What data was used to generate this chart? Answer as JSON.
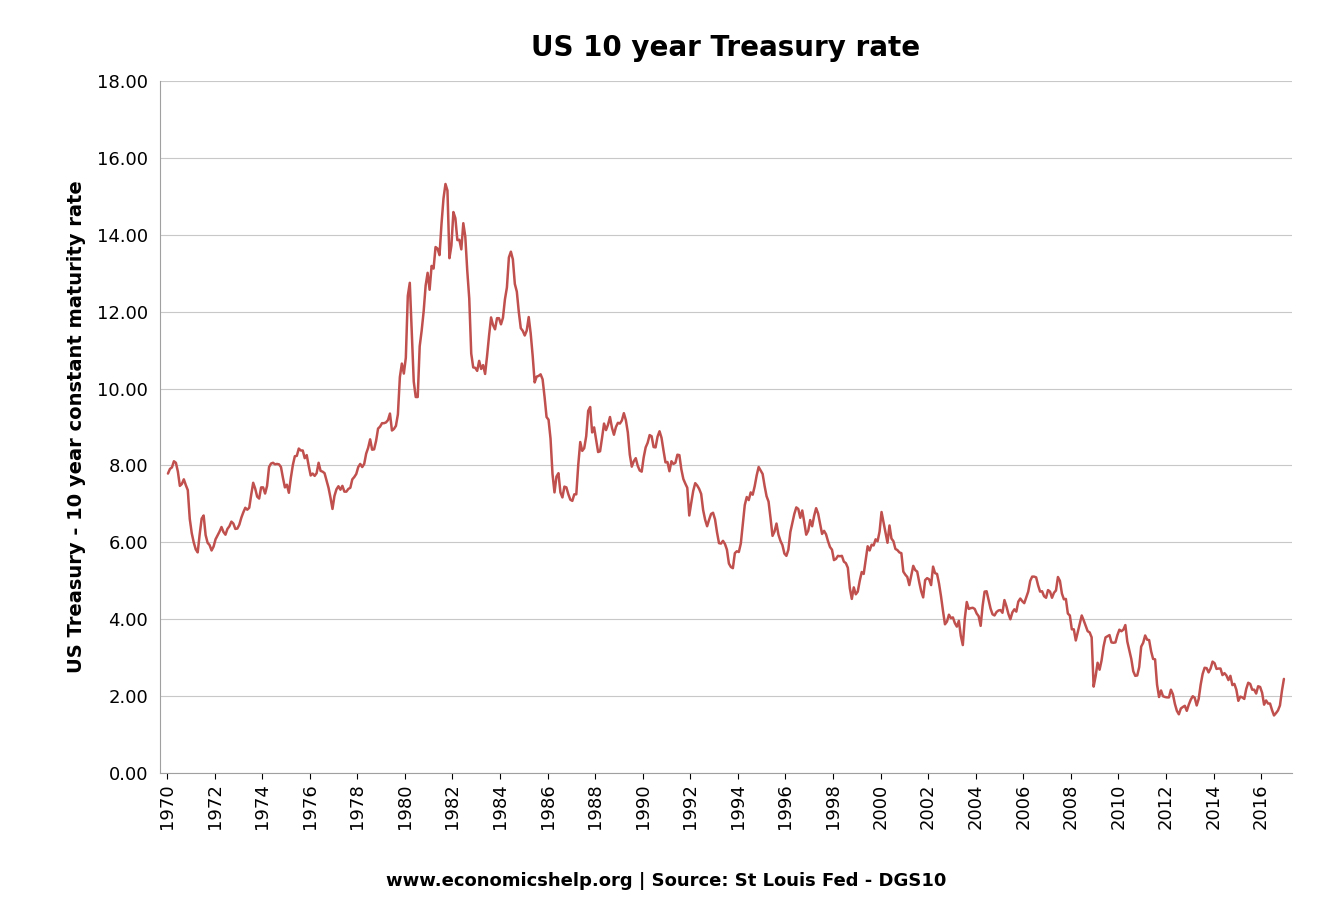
{
  "title": "US 10 year Treasury rate",
  "ylabel": "US Treasury - 10 year constant maturity rate",
  "source_text": "www.economicshelp.org | Source: St Louis Fed - DGS10",
  "ylim": [
    0.0,
    18.0
  ],
  "yticks": [
    0.0,
    2.0,
    4.0,
    6.0,
    8.0,
    10.0,
    12.0,
    14.0,
    16.0,
    18.0
  ],
  "line_color": "#C0504D",
  "background_color": "#FFFFFF",
  "grid_color": "#C8C8C8",
  "title_fontsize": 20,
  "label_fontsize": 14,
  "tick_fontsize": 13,
  "source_fontsize": 13,
  "xtick_years": [
    1970,
    1972,
    1974,
    1976,
    1978,
    1980,
    1982,
    1984,
    1986,
    1988,
    1990,
    1992,
    1994,
    1996,
    1998,
    2000,
    2002,
    2004,
    2006,
    2008,
    2010,
    2012,
    2014,
    2016
  ],
  "data": {
    "1970-01": 7.79,
    "1970-02": 7.91,
    "1970-03": 7.95,
    "1970-04": 8.11,
    "1970-05": 8.07,
    "1970-06": 7.84,
    "1970-07": 7.47,
    "1970-08": 7.52,
    "1970-09": 7.64,
    "1970-10": 7.49,
    "1970-11": 7.36,
    "1970-12": 6.61,
    "1971-01": 6.24,
    "1971-02": 6.0,
    "1971-03": 5.82,
    "1971-04": 5.74,
    "1971-05": 6.21,
    "1971-06": 6.62,
    "1971-07": 6.7,
    "1971-08": 6.19,
    "1971-09": 5.99,
    "1971-10": 5.93,
    "1971-11": 5.79,
    "1971-12": 5.89,
    "1972-01": 6.08,
    "1972-02": 6.18,
    "1972-03": 6.28,
    "1972-04": 6.4,
    "1972-05": 6.27,
    "1972-06": 6.2,
    "1972-07": 6.35,
    "1972-08": 6.42,
    "1972-09": 6.54,
    "1972-10": 6.49,
    "1972-11": 6.35,
    "1972-12": 6.36,
    "1973-01": 6.46,
    "1973-02": 6.64,
    "1973-03": 6.78,
    "1973-04": 6.9,
    "1973-05": 6.85,
    "1973-06": 6.9,
    "1973-07": 7.24,
    "1973-08": 7.55,
    "1973-09": 7.4,
    "1973-10": 7.19,
    "1973-11": 7.14,
    "1973-12": 7.43,
    "1974-01": 7.43,
    "1974-02": 7.27,
    "1974-03": 7.47,
    "1974-04": 7.96,
    "1974-05": 8.05,
    "1974-06": 8.07,
    "1974-07": 8.03,
    "1974-08": 8.04,
    "1974-09": 8.03,
    "1974-10": 7.96,
    "1974-11": 7.68,
    "1974-12": 7.43,
    "1975-01": 7.5,
    "1975-02": 7.29,
    "1975-03": 7.68,
    "1975-04": 8.01,
    "1975-05": 8.24,
    "1975-06": 8.25,
    "1975-07": 8.44,
    "1975-08": 8.39,
    "1975-09": 8.39,
    "1975-10": 8.19,
    "1975-11": 8.27,
    "1975-12": 7.99,
    "1976-01": 7.74,
    "1976-02": 7.79,
    "1976-03": 7.73,
    "1976-04": 7.8,
    "1976-05": 8.07,
    "1976-06": 7.86,
    "1976-07": 7.84,
    "1976-08": 7.8,
    "1976-09": 7.61,
    "1976-10": 7.42,
    "1976-11": 7.16,
    "1976-12": 6.87,
    "1977-01": 7.21,
    "1977-02": 7.38,
    "1977-03": 7.46,
    "1977-04": 7.37,
    "1977-05": 7.47,
    "1977-06": 7.32,
    "1977-07": 7.32,
    "1977-08": 7.39,
    "1977-09": 7.42,
    "1977-10": 7.64,
    "1977-11": 7.7,
    "1977-12": 7.78,
    "1978-01": 7.96,
    "1978-02": 8.04,
    "1978-03": 7.96,
    "1978-04": 8.04,
    "1978-05": 8.31,
    "1978-06": 8.46,
    "1978-07": 8.68,
    "1978-08": 8.41,
    "1978-09": 8.42,
    "1978-10": 8.64,
    "1978-11": 8.96,
    "1978-12": 9.01,
    "1979-01": 9.1,
    "1979-02": 9.1,
    "1979-03": 9.12,
    "1979-04": 9.18,
    "1979-05": 9.35,
    "1979-06": 8.91,
    "1979-07": 8.95,
    "1979-08": 9.03,
    "1979-09": 9.33,
    "1979-10": 10.3,
    "1979-11": 10.65,
    "1979-12": 10.39,
    "1980-01": 10.8,
    "1980-02": 12.41,
    "1980-03": 12.75,
    "1980-04": 11.47,
    "1980-05": 10.18,
    "1980-06": 9.78,
    "1980-07": 9.78,
    "1980-08": 11.1,
    "1980-09": 11.51,
    "1980-10": 12.01,
    "1980-11": 12.68,
    "1980-12": 13.01,
    "1981-01": 12.57,
    "1981-02": 13.19,
    "1981-03": 13.12,
    "1981-04": 13.68,
    "1981-05": 13.64,
    "1981-06": 13.47,
    "1981-07": 14.28,
    "1981-08": 14.94,
    "1981-09": 15.32,
    "1981-10": 15.15,
    "1981-11": 13.39,
    "1981-12": 13.72,
    "1982-01": 14.59,
    "1982-02": 14.43,
    "1982-03": 13.86,
    "1982-04": 13.87,
    "1982-05": 13.62,
    "1982-06": 14.3,
    "1982-07": 13.95,
    "1982-08": 13.06,
    "1982-09": 12.34,
    "1982-10": 10.91,
    "1982-11": 10.55,
    "1982-12": 10.54,
    "1983-01": 10.46,
    "1983-02": 10.72,
    "1983-03": 10.51,
    "1983-04": 10.61,
    "1983-05": 10.38,
    "1983-06": 10.85,
    "1983-07": 11.38,
    "1983-08": 11.85,
    "1983-09": 11.65,
    "1983-10": 11.54,
    "1983-11": 11.83,
    "1983-12": 11.83,
    "1984-01": 11.67,
    "1984-02": 11.84,
    "1984-03": 12.32,
    "1984-04": 12.63,
    "1984-05": 13.41,
    "1984-06": 13.56,
    "1984-07": 13.36,
    "1984-08": 12.72,
    "1984-09": 12.52,
    "1984-10": 11.99,
    "1984-11": 11.57,
    "1984-12": 11.5,
    "1985-01": 11.38,
    "1985-02": 11.51,
    "1985-03": 11.86,
    "1985-04": 11.43,
    "1985-05": 10.85,
    "1985-06": 10.16,
    "1985-07": 10.31,
    "1985-08": 10.33,
    "1985-09": 10.37,
    "1985-10": 10.24,
    "1985-11": 9.78,
    "1985-12": 9.26,
    "1986-01": 9.19,
    "1986-02": 8.7,
    "1986-03": 7.78,
    "1986-04": 7.3,
    "1986-05": 7.71,
    "1986-06": 7.8,
    "1986-07": 7.3,
    "1986-08": 7.17,
    "1986-09": 7.45,
    "1986-10": 7.43,
    "1986-11": 7.25,
    "1986-12": 7.11,
    "1987-01": 7.08,
    "1987-02": 7.25,
    "1987-03": 7.25,
    "1987-04": 8.02,
    "1987-05": 8.61,
    "1987-06": 8.38,
    "1987-07": 8.45,
    "1987-08": 8.76,
    "1987-09": 9.42,
    "1987-10": 9.52,
    "1987-11": 8.86,
    "1987-12": 8.99,
    "1988-01": 8.67,
    "1988-02": 8.35,
    "1988-03": 8.37,
    "1988-04": 8.72,
    "1988-05": 9.09,
    "1988-06": 8.92,
    "1988-07": 9.06,
    "1988-08": 9.26,
    "1988-09": 8.98,
    "1988-10": 8.8,
    "1988-11": 9.0,
    "1988-12": 9.11,
    "1989-01": 9.09,
    "1989-02": 9.17,
    "1989-03": 9.36,
    "1989-04": 9.18,
    "1989-05": 8.86,
    "1989-06": 8.28,
    "1989-07": 7.97,
    "1989-08": 8.11,
    "1989-09": 8.19,
    "1989-10": 7.99,
    "1989-11": 7.87,
    "1989-12": 7.84,
    "1990-01": 8.21,
    "1990-02": 8.47,
    "1990-03": 8.59,
    "1990-04": 8.79,
    "1990-05": 8.76,
    "1990-06": 8.48,
    "1990-07": 8.47,
    "1990-08": 8.75,
    "1990-09": 8.89,
    "1990-10": 8.72,
    "1990-11": 8.39,
    "1990-12": 8.08,
    "1991-01": 8.09,
    "1991-02": 7.85,
    "1991-03": 8.11,
    "1991-04": 8.04,
    "1991-05": 8.07,
    "1991-06": 8.28,
    "1991-07": 8.27,
    "1991-08": 7.9,
    "1991-09": 7.65,
    "1991-10": 7.53,
    "1991-11": 7.42,
    "1991-12": 6.7,
    "1992-01": 7.03,
    "1992-02": 7.34,
    "1992-03": 7.54,
    "1992-04": 7.48,
    "1992-05": 7.39,
    "1992-06": 7.26,
    "1992-07": 6.84,
    "1992-08": 6.59,
    "1992-09": 6.42,
    "1992-10": 6.59,
    "1992-11": 6.74,
    "1992-12": 6.77,
    "1993-01": 6.6,
    "1993-02": 6.26,
    "1993-03": 5.98,
    "1993-04": 5.97,
    "1993-05": 6.04,
    "1993-06": 5.96,
    "1993-07": 5.81,
    "1993-08": 5.45,
    "1993-09": 5.36,
    "1993-10": 5.33,
    "1993-11": 5.72,
    "1993-12": 5.77,
    "1994-01": 5.75,
    "1994-02": 5.97,
    "1994-03": 6.48,
    "1994-04": 6.97,
    "1994-05": 7.18,
    "1994-06": 7.1,
    "1994-07": 7.3,
    "1994-08": 7.24,
    "1994-09": 7.46,
    "1994-10": 7.74,
    "1994-11": 7.96,
    "1994-12": 7.87,
    "1995-01": 7.78,
    "1995-02": 7.47,
    "1995-03": 7.2,
    "1995-04": 7.06,
    "1995-05": 6.63,
    "1995-06": 6.17,
    "1995-07": 6.28,
    "1995-08": 6.49,
    "1995-09": 6.2,
    "1995-10": 6.04,
    "1995-11": 5.93,
    "1995-12": 5.71,
    "1996-01": 5.65,
    "1996-02": 5.81,
    "1996-03": 6.27,
    "1996-04": 6.51,
    "1996-05": 6.74,
    "1996-06": 6.91,
    "1996-07": 6.87,
    "1996-08": 6.64,
    "1996-09": 6.83,
    "1996-10": 6.53,
    "1996-11": 6.2,
    "1996-12": 6.3,
    "1997-01": 6.58,
    "1997-02": 6.42,
    "1997-03": 6.69,
    "1997-04": 6.89,
    "1997-05": 6.75,
    "1997-06": 6.49,
    "1997-07": 6.22,
    "1997-08": 6.3,
    "1997-09": 6.21,
    "1997-10": 6.03,
    "1997-11": 5.88,
    "1997-12": 5.81,
    "1998-01": 5.54,
    "1998-02": 5.57,
    "1998-03": 5.65,
    "1998-04": 5.64,
    "1998-05": 5.65,
    "1998-06": 5.5,
    "1998-07": 5.46,
    "1998-08": 5.34,
    "1998-09": 4.81,
    "1998-10": 4.53,
    "1998-11": 4.83,
    "1998-12": 4.65,
    "1999-01": 4.72,
    "1999-02": 5.0,
    "1999-03": 5.23,
    "1999-04": 5.18,
    "1999-05": 5.54,
    "1999-06": 5.9,
    "1999-07": 5.79,
    "1999-08": 5.94,
    "1999-09": 5.92,
    "1999-10": 6.08,
    "1999-11": 6.03,
    "1999-12": 6.28,
    "2000-01": 6.79,
    "2000-02": 6.52,
    "2000-03": 6.26,
    "2000-04": 5.99,
    "2000-05": 6.44,
    "2000-06": 6.1,
    "2000-07": 6.03,
    "2000-08": 5.83,
    "2000-09": 5.8,
    "2000-10": 5.74,
    "2000-11": 5.72,
    "2000-12": 5.24,
    "2001-01": 5.16,
    "2001-02": 5.1,
    "2001-03": 4.89,
    "2001-04": 5.14,
    "2001-05": 5.39,
    "2001-06": 5.28,
    "2001-07": 5.24,
    "2001-08": 4.97,
    "2001-09": 4.73,
    "2001-10": 4.57,
    "2001-11": 5.02,
    "2001-12": 5.07,
    "2002-01": 5.04,
    "2002-02": 4.89,
    "2002-03": 5.37,
    "2002-04": 5.2,
    "2002-05": 5.18,
    "2002-06": 4.93,
    "2002-07": 4.6,
    "2002-08": 4.22,
    "2002-09": 3.87,
    "2002-10": 3.94,
    "2002-11": 4.12,
    "2002-12": 4.03,
    "2003-01": 4.05,
    "2003-02": 3.9,
    "2003-03": 3.81,
    "2003-04": 3.96,
    "2003-05": 3.57,
    "2003-06": 3.33,
    "2003-07": 4.02,
    "2003-08": 4.45,
    "2003-09": 4.27,
    "2003-10": 4.29,
    "2003-11": 4.3,
    "2003-12": 4.27,
    "2004-01": 4.15,
    "2004-02": 4.08,
    "2004-03": 3.83,
    "2004-04": 4.35,
    "2004-05": 4.72,
    "2004-06": 4.73,
    "2004-07": 4.5,
    "2004-08": 4.28,
    "2004-09": 4.13,
    "2004-10": 4.1,
    "2004-11": 4.19,
    "2004-12": 4.23,
    "2005-01": 4.24,
    "2005-02": 4.17,
    "2005-03": 4.5,
    "2005-04": 4.34,
    "2005-05": 4.14,
    "2005-06": 4.0,
    "2005-07": 4.18,
    "2005-08": 4.26,
    "2005-09": 4.2,
    "2005-10": 4.46,
    "2005-11": 4.54,
    "2005-12": 4.47,
    "2006-01": 4.42,
    "2006-02": 4.57,
    "2006-03": 4.72,
    "2006-04": 5.0,
    "2006-05": 5.11,
    "2006-06": 5.11,
    "2006-07": 5.09,
    "2006-08": 4.88,
    "2006-09": 4.72,
    "2006-10": 4.73,
    "2006-11": 4.6,
    "2006-12": 4.56,
    "2007-01": 4.76,
    "2007-02": 4.72,
    "2007-03": 4.56,
    "2007-04": 4.69,
    "2007-05": 4.75,
    "2007-06": 5.1,
    "2007-07": 5.0,
    "2007-08": 4.67,
    "2007-09": 4.52,
    "2007-10": 4.53,
    "2007-11": 4.15,
    "2007-12": 4.1,
    "2008-01": 3.74,
    "2008-02": 3.74,
    "2008-03": 3.45,
    "2008-04": 3.67,
    "2008-05": 3.88,
    "2008-06": 4.1,
    "2008-07": 3.97,
    "2008-08": 3.83,
    "2008-09": 3.69,
    "2008-10": 3.66,
    "2008-11": 3.53,
    "2008-12": 2.25,
    "2009-01": 2.52,
    "2009-02": 2.87,
    "2009-03": 2.69,
    "2009-04": 2.93,
    "2009-05": 3.29,
    "2009-06": 3.53,
    "2009-07": 3.56,
    "2009-08": 3.59,
    "2009-09": 3.4,
    "2009-10": 3.39,
    "2009-11": 3.4,
    "2009-12": 3.59,
    "2010-01": 3.73,
    "2010-02": 3.69,
    "2010-03": 3.73,
    "2010-04": 3.85,
    "2010-05": 3.42,
    "2010-06": 3.19,
    "2010-07": 2.97,
    "2010-08": 2.65,
    "2010-09": 2.53,
    "2010-10": 2.54,
    "2010-11": 2.76,
    "2010-12": 3.29,
    "2011-01": 3.39,
    "2011-02": 3.58,
    "2011-03": 3.47,
    "2011-04": 3.46,
    "2011-05": 3.17,
    "2011-06": 2.97,
    "2011-07": 2.96,
    "2011-08": 2.3,
    "2011-09": 1.98,
    "2011-10": 2.15,
    "2011-11": 2.0,
    "2011-12": 1.98,
    "2012-01": 1.97,
    "2012-02": 1.97,
    "2012-03": 2.17,
    "2012-04": 2.05,
    "2012-05": 1.8,
    "2012-06": 1.62,
    "2012-07": 1.53,
    "2012-08": 1.68,
    "2012-09": 1.72,
    "2012-10": 1.75,
    "2012-11": 1.62,
    "2012-12": 1.78,
    "2013-01": 1.91,
    "2013-02": 2.0,
    "2013-03": 1.96,
    "2013-04": 1.76,
    "2013-05": 1.93,
    "2013-06": 2.3,
    "2013-07": 2.58,
    "2013-08": 2.74,
    "2013-09": 2.73,
    "2013-10": 2.62,
    "2013-11": 2.72,
    "2013-12": 2.9,
    "2014-01": 2.86,
    "2014-02": 2.71,
    "2014-03": 2.72,
    "2014-04": 2.72,
    "2014-05": 2.55,
    "2014-06": 2.6,
    "2014-07": 2.54,
    "2014-08": 2.42,
    "2014-09": 2.53,
    "2014-10": 2.29,
    "2014-11": 2.32,
    "2014-12": 2.17,
    "2015-01": 1.88,
    "2015-02": 1.99,
    "2015-03": 1.97,
    "2015-04": 1.93,
    "2015-05": 2.19,
    "2015-06": 2.35,
    "2015-07": 2.32,
    "2015-08": 2.17,
    "2015-09": 2.17,
    "2015-10": 2.07,
    "2015-11": 2.26,
    "2015-12": 2.24,
    "2016-01": 2.09,
    "2016-02": 1.78,
    "2016-03": 1.89,
    "2016-04": 1.81,
    "2016-05": 1.81,
    "2016-06": 1.64,
    "2016-07": 1.5,
    "2016-08": 1.56,
    "2016-09": 1.63,
    "2016-10": 1.76,
    "2016-11": 2.14,
    "2016-12": 2.45
  }
}
